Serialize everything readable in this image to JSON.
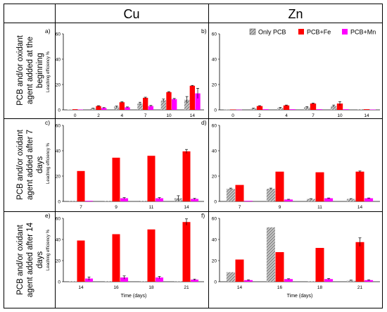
{
  "columns": [
    "Cu",
    "Zn"
  ],
  "rows": [
    "PCB and/or oxidant agent added at the beginning",
    "PCB and/or oxidant agent added after 7 days",
    "PCB and/or oxidant agent added after 14 days"
  ],
  "legend": [
    {
      "name": "Only PCB",
      "pattern": "hatch",
      "color": "#808080"
    },
    {
      "name": "PCB+Fe",
      "color": "#ff0000"
    },
    {
      "name": "PCB+Mn",
      "color": "#ff00ff"
    }
  ],
  "colors": {
    "only_pcb": "#808080",
    "pcb_fe": "#ff0000",
    "pcb_mn": "#ff00ff",
    "error_bar": "#000000",
    "grid_line": "#000000"
  },
  "chart_data": [
    {
      "type": "bar",
      "panel": "a)",
      "ylabel": "Leaching efficiency %",
      "ylim": [
        0,
        60
      ],
      "yticks": [
        0,
        20,
        40,
        60
      ],
      "categories": [
        "0",
        "2",
        "4",
        "7",
        "10",
        "14"
      ],
      "series": [
        {
          "name": "Only PCB",
          "values": [
            0.3,
            1,
            2.5,
            5,
            7.5,
            8
          ],
          "errors": [
            0,
            0.3,
            0.5,
            1,
            1,
            2.5
          ]
        },
        {
          "name": "PCB+Fe",
          "values": [
            0.5,
            3,
            6,
            9.5,
            14,
            19
          ],
          "errors": [
            0,
            0.3,
            0.4,
            0.5,
            0.4,
            0.3
          ]
        },
        {
          "name": "PCB+Mn",
          "values": [
            0.3,
            1.5,
            2,
            3,
            8.5,
            13
          ],
          "errors": [
            0,
            0.3,
            0.3,
            0.5,
            0.5,
            4
          ]
        }
      ]
    },
    {
      "type": "bar",
      "panel": "b)",
      "ylabel": "",
      "ylim": [
        0,
        60
      ],
      "yticks": [
        0,
        20,
        40,
        60
      ],
      "categories": [
        "0",
        "2",
        "4",
        "7",
        "10",
        "14"
      ],
      "series": [
        {
          "name": "Only PCB",
          "values": [
            0.2,
            1,
            1.5,
            2,
            3,
            0.5
          ],
          "errors": [
            0,
            0.3,
            0.4,
            0.5,
            0.8,
            0
          ]
        },
        {
          "name": "PCB+Fe",
          "values": [
            0.3,
            3,
            3.5,
            5,
            5,
            0.5
          ],
          "errors": [
            0,
            0.3,
            0.3,
            0.4,
            1.5,
            0
          ]
        },
        {
          "name": "PCB+Mn",
          "values": [
            0.2,
            0.5,
            0.5,
            0.5,
            0.5,
            0.3
          ],
          "errors": [
            0,
            0,
            0,
            0,
            0,
            0
          ]
        }
      ]
    },
    {
      "type": "bar",
      "panel": "c)",
      "ylabel": "Leaching efficiency %",
      "ylim": [
        0,
        60
      ],
      "yticks": [
        0,
        20,
        40,
        60
      ],
      "categories": [
        "7",
        "9",
        "11",
        "14"
      ],
      "series": [
        {
          "name": "Only PCB",
          "values": [
            0.5,
            0.5,
            0.5,
            2.5
          ],
          "errors": [
            0,
            0,
            0,
            2
          ]
        },
        {
          "name": "PCB+Fe",
          "values": [
            24,
            34.5,
            36,
            39.5
          ],
          "errors": [
            0,
            0,
            0,
            1.5
          ]
        },
        {
          "name": "PCB+Mn",
          "values": [
            0.5,
            2.5,
            2.5,
            2
          ],
          "errors": [
            0,
            0.5,
            0.5,
            0.4
          ]
        }
      ]
    },
    {
      "type": "bar",
      "panel": "d)",
      "ylabel": "",
      "ylim": [
        0,
        60
      ],
      "yticks": [
        0,
        20,
        40,
        60
      ],
      "categories": [
        "7",
        "9",
        "11",
        "14"
      ],
      "series": [
        {
          "name": "Only PCB",
          "values": [
            10,
            10,
            2,
            2
          ],
          "errors": [
            0.5,
            0.5,
            0.2,
            0.2
          ]
        },
        {
          "name": "PCB+Fe",
          "values": [
            13,
            23.5,
            23,
            23.5
          ],
          "errors": [
            0,
            0,
            0,
            0.5
          ]
        },
        {
          "name": "PCB+Mn",
          "values": [
            0.5,
            1.5,
            2.5,
            2.5
          ],
          "errors": [
            0,
            0.2,
            0.2,
            0.2
          ]
        }
      ]
    },
    {
      "type": "bar",
      "panel": "e)",
      "ylabel": "Leaching efficiency %",
      "xlabel": "Time (days)",
      "ylim": [
        0,
        60
      ],
      "yticks": [
        0,
        20,
        40,
        60
      ],
      "categories": [
        "14",
        "16",
        "18",
        "21"
      ],
      "series": [
        {
          "name": "Only PCB",
          "values": [
            0.5,
            0.5,
            0.5,
            0.5
          ],
          "errors": [
            0,
            0,
            0,
            0
          ]
        },
        {
          "name": "PCB+Fe",
          "values": [
            39,
            45,
            49.5,
            56.5
          ],
          "errors": [
            0,
            0,
            0,
            3
          ]
        },
        {
          "name": "PCB+Mn",
          "values": [
            3,
            4,
            4,
            2
          ],
          "errors": [
            1.5,
            1.5,
            1,
            0.5
          ]
        }
      ]
    },
    {
      "type": "bar",
      "panel": "f)",
      "ylabel": "",
      "xlabel": "Time (days)",
      "ylim": [
        0,
        60
      ],
      "yticks": [
        0,
        20,
        40,
        60
      ],
      "categories": [
        "14",
        "16",
        "18",
        "21"
      ],
      "series": [
        {
          "name": "Only PCB",
          "values": [
            9,
            51.5,
            0.5,
            1
          ],
          "errors": [
            0,
            0,
            0,
            0.5
          ]
        },
        {
          "name": "PCB+Fe",
          "values": [
            21,
            28,
            32,
            37.5
          ],
          "errors": [
            0,
            0,
            0,
            4
          ]
        },
        {
          "name": "PCB+Mn",
          "values": [
            1.5,
            2.5,
            2.5,
            1.5
          ],
          "errors": [
            0.3,
            0.3,
            0.5,
            0.3
          ]
        }
      ]
    }
  ]
}
